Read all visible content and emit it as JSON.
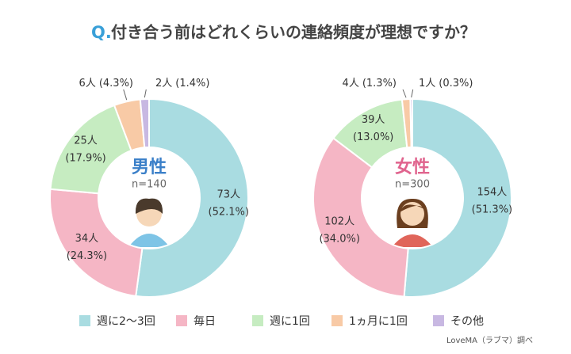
{
  "header": {
    "prefix": "Q.",
    "title": "付き合う前はどれくらいの連絡頻度が理想ですか？"
  },
  "legend": {
    "categories": [
      "週に2〜3回",
      "毎日",
      "週に1回",
      "1ヵ月に1回",
      "その他"
    ],
    "colors": [
      "#a9dce1",
      "#f5b6c5",
      "#c6ecc1",
      "#f8caa6",
      "#c8b8e2"
    ]
  },
  "chart_data": [
    {
      "type": "pie",
      "title": "男性",
      "subtitle": "n=140",
      "title_color": "#3a7fc8",
      "values": [
        73,
        34,
        25,
        6,
        2
      ],
      "value_labels": [
        "73人",
        "34人",
        "25人",
        "6人",
        "2人"
      ],
      "percents": [
        52.1,
        24.3,
        17.9,
        4.3,
        1.4
      ],
      "percent_labels": [
        "(52.1%)",
        "(24.3%)",
        "(17.9%)",
        "(4.3%)",
        "(1.4%)"
      ]
    },
    {
      "type": "pie",
      "title": "女性",
      "subtitle": "n=300",
      "title_color": "#e0648e",
      "values": [
        154,
        102,
        39,
        4,
        1
      ],
      "value_labels": [
        "154人",
        "102人",
        "39人",
        "4人",
        "1人"
      ],
      "percents": [
        51.3,
        34.0,
        13.0,
        1.3,
        0.3
      ],
      "percent_labels": [
        "(51.3%)",
        "(34.0%)",
        "(13.0%)",
        "(1.3%)",
        "(0.3%)"
      ]
    }
  ],
  "source": "LoveMA（ラブマ）調べ"
}
